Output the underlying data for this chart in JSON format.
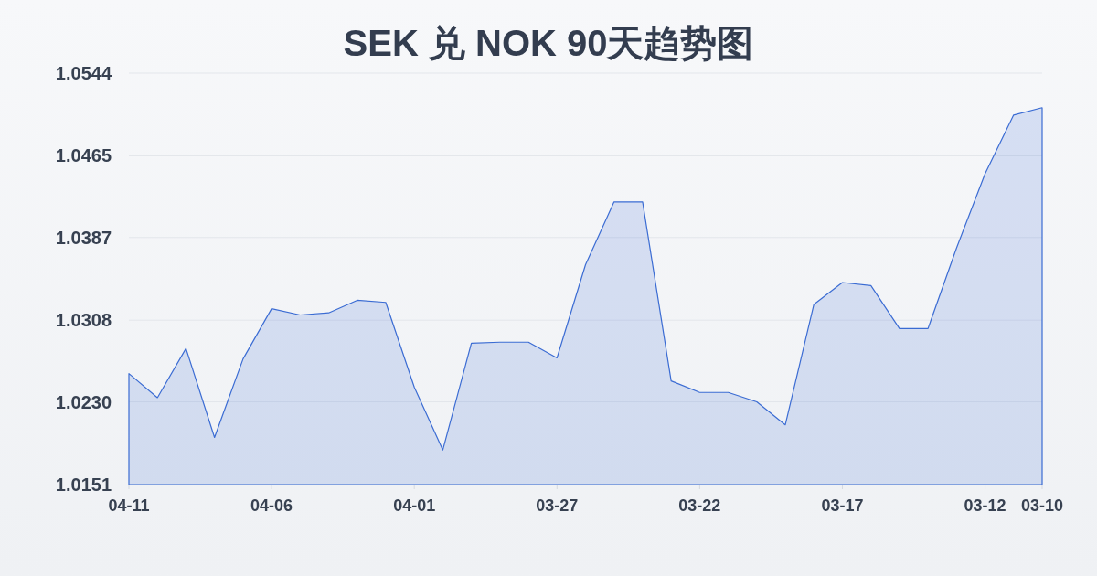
{
  "chart_data": {
    "type": "area",
    "title": "SEK 兑 NOK 90天趋势图",
    "categories": [
      "04-11",
      null,
      null,
      null,
      null,
      "04-06",
      null,
      null,
      null,
      null,
      "04-01",
      null,
      null,
      null,
      null,
      "03-27",
      null,
      null,
      null,
      null,
      "03-22",
      null,
      null,
      null,
      null,
      "03-17",
      null,
      null,
      null,
      null,
      "03-12",
      null,
      "03-10"
    ],
    "series": [
      {
        "color": "#3b6cd3",
        "values": [
          1.0257,
          1.0234,
          1.0281,
          1.0196,
          1.0271,
          1.0319,
          1.0313,
          1.0315,
          1.0327,
          1.0325,
          1.0244,
          1.0184,
          1.0286,
          1.0287,
          1.0287,
          1.0272,
          1.0361,
          1.0421,
          1.0421,
          1.025,
          1.0239,
          1.0239,
          1.023,
          1.0208,
          1.0323,
          1.0344,
          1.0341,
          1.03,
          1.03,
          1.0377,
          1.0448,
          1.0504,
          1.0511
        ]
      }
    ],
    "ylim": [
      1.0151,
      1.0544
    ],
    "yticks": [
      1.0151,
      {
        "value": 1.023,
        "label": "1.0230"
      },
      1.0308,
      1.0387,
      1.0465,
      1.0544
    ],
    "grid": "y"
  }
}
